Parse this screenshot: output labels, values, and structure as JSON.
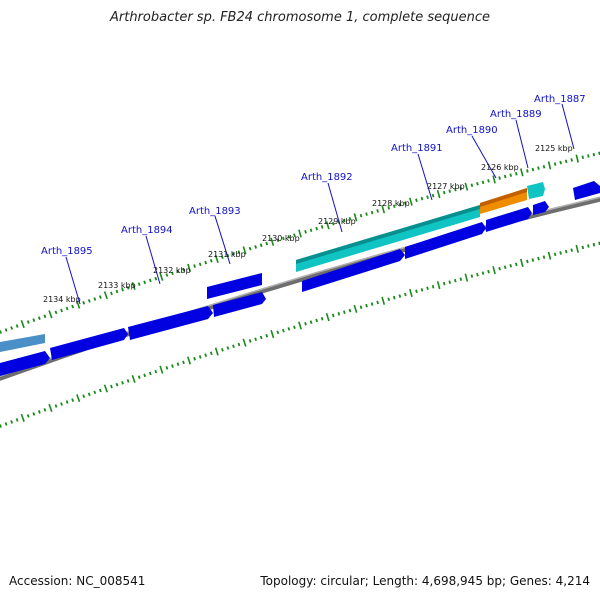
{
  "title": "Arthrobacter sp. FB24 chromosome 1, complete sequence",
  "footer": {
    "accession": "Accession: NC_008541",
    "summary": "Topology: circular; Length: 4,698,945 bp; Genes: 4,214"
  },
  "colors": {
    "cds": "#0000e6",
    "cds_shade": "#000090",
    "rna_teal": "#10c8c8",
    "rna_orange": "#f08c00",
    "backbone": "#7a7a7a",
    "ticks": "#1a8a1a",
    "label": "#1010c8"
  },
  "gene_labels": [
    "Arth_1887",
    "Arth_1889",
    "Arth_1890",
    "Arth_1891",
    "Arth_1892",
    "Arth_1893",
    "Arth_1894",
    "Arth_1895"
  ],
  "position_labels": [
    "2125 kbp",
    "2126 kbp",
    "2127 kbp",
    "2128 kbp",
    "2129 kbp",
    "2130 kbp",
    "2131 kbp",
    "2132 kbp",
    "2133 kbp",
    "2134 kbp"
  ]
}
